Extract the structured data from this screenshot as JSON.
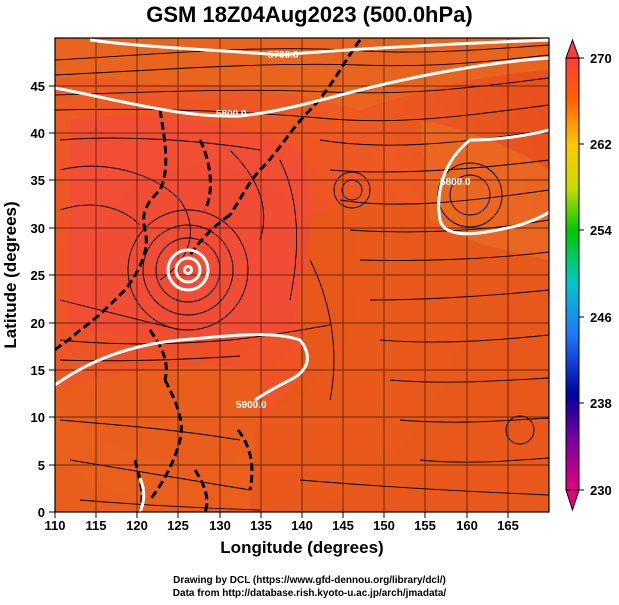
{
  "title": "GSM 18Z04Aug2023 (500.0hPa)",
  "map": {
    "xlabel": "Longitude (degrees)",
    "ylabel": "Latitude  (degrees)",
    "lon_range": [
      110,
      170
    ],
    "lat_range": [
      0,
      50
    ],
    "lon_ticks": [
      "110",
      "115",
      "120",
      "125",
      "130",
      "135",
      "140",
      "145",
      "150",
      "155",
      "160",
      "165"
    ],
    "lat_ticks": [
      "0",
      "5",
      "10",
      "15",
      "20",
      "25",
      "30",
      "35",
      "40",
      "45"
    ],
    "contour_labels": [
      "5700.0",
      "5800.0",
      "5800.0",
      "5900.0"
    ]
  },
  "colorbar": {
    "ticks": [
      "270",
      "262",
      "254",
      "246",
      "238",
      "230"
    ],
    "colors": [
      "#e4007f",
      "#0000a0",
      "#1e78ff",
      "#00c8c8",
      "#00c800",
      "#c8dc00",
      "#ffc800",
      "#ff6400",
      "#ff3c3c"
    ]
  },
  "credits": {
    "line1": "Drawing by DCL (https://www.gfd-dennou.org/library/dcl/)",
    "line2": "Data from http://database.rish.kyoto-u.ac.jp/arch/jmadata/"
  }
}
